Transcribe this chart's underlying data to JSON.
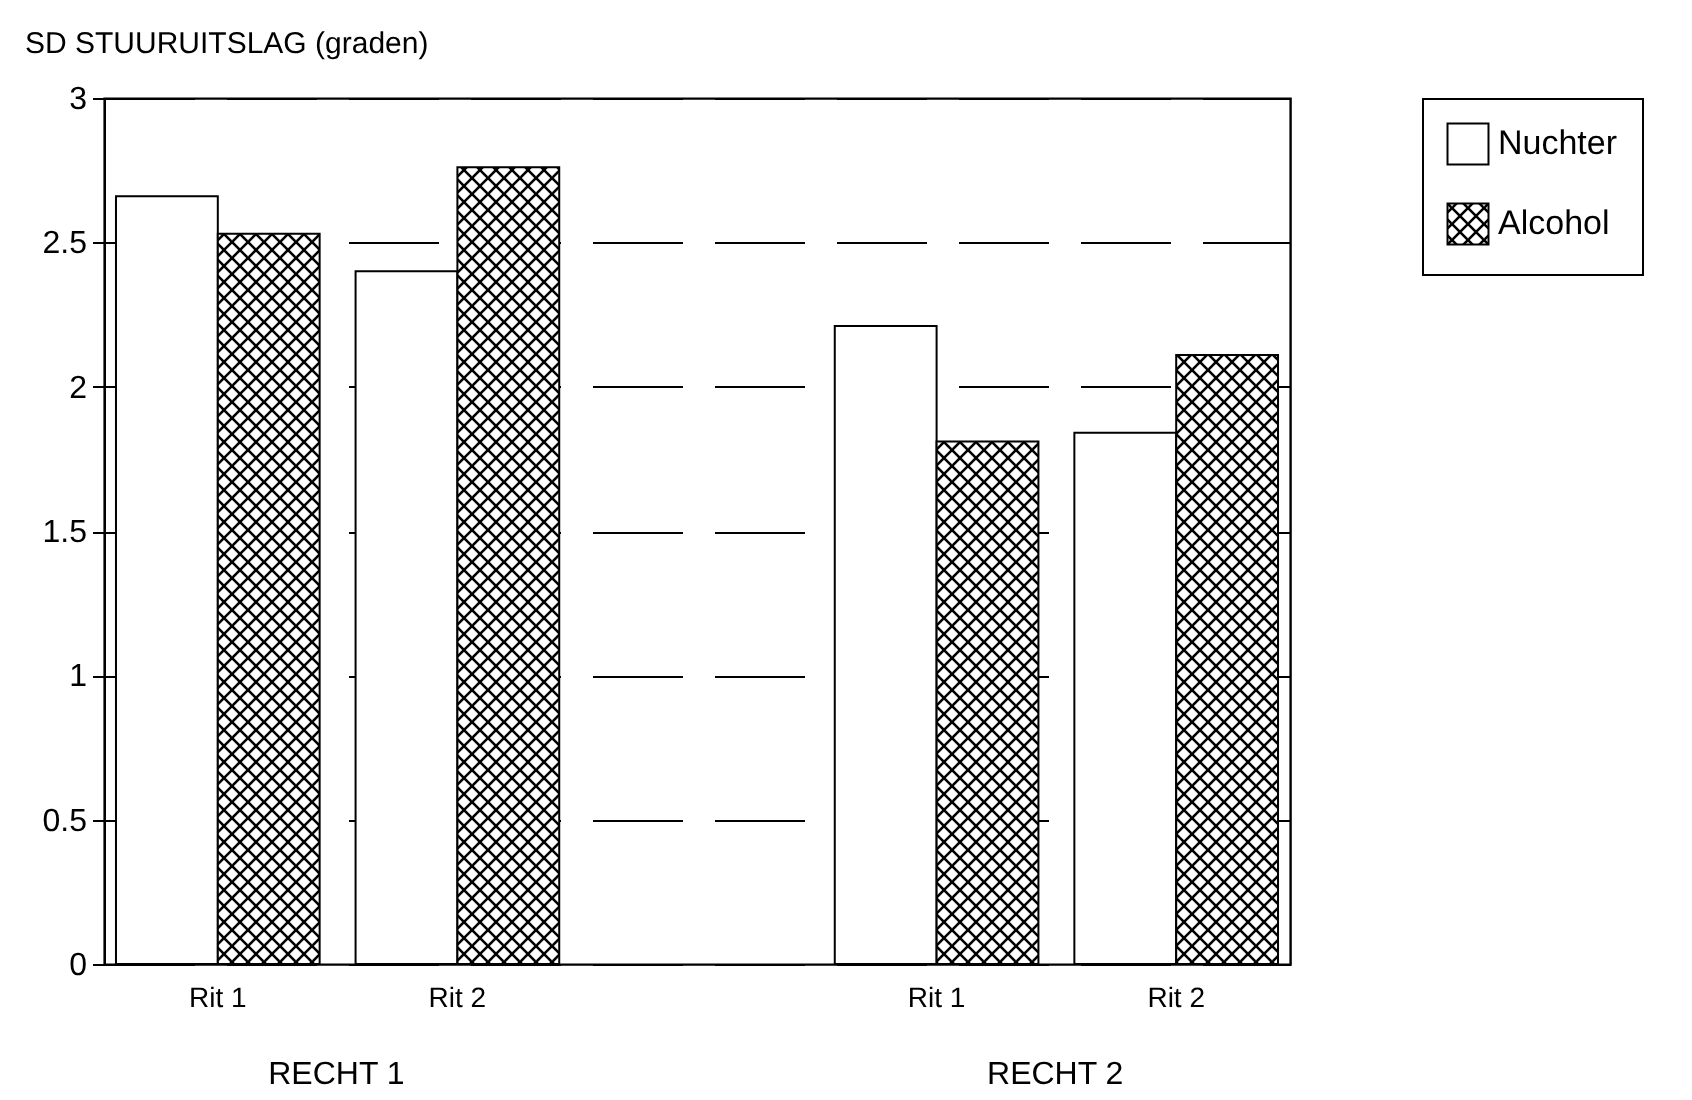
{
  "chart_data": {
    "type": "bar",
    "ylabel": "SD STUURUITSLAG (graden)",
    "categories": [
      "Rit 1",
      "Rit 2",
      null,
      "Rit 1",
      "Rit 2"
    ],
    "series": [
      {
        "name": "Nuchter",
        "color": "#ffffff",
        "values": [
          2.66,
          2.4,
          null,
          2.21,
          1.84
        ]
      },
      {
        "name": "Alcohol",
        "color": "#000000",
        "values": [
          2.53,
          2.76,
          null,
          1.81,
          2.11
        ]
      }
    ],
    "ylim": [
      0,
      3
    ],
    "yticks": [
      0,
      0.5,
      1,
      1.5,
      2,
      2.5,
      3
    ],
    "grid": "y",
    "legend": "right",
    "annotations": [
      "RECHT 1",
      "RECHT 2"
    ]
  }
}
